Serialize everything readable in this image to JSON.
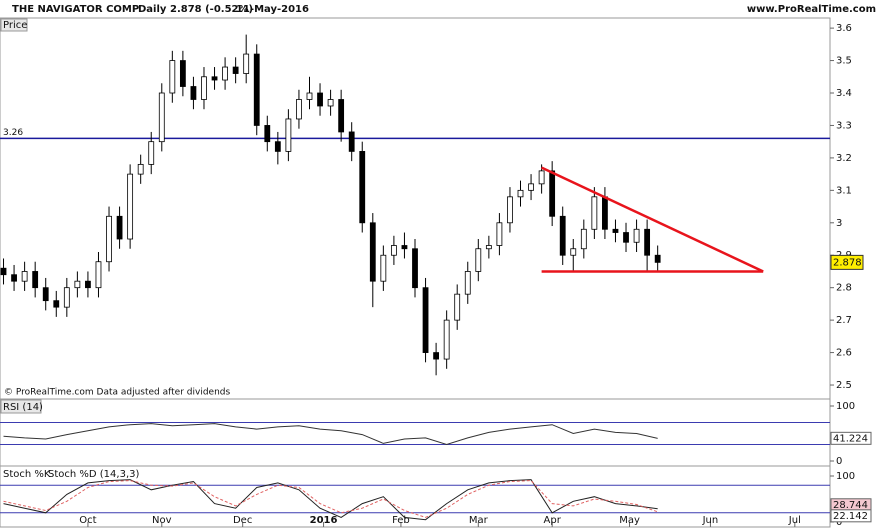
{
  "header": {
    "name": "THE NAVIGATOR COMP",
    "period": "Daily",
    "quote": "2.878 (-0.52%)",
    "date": "11-May-2016",
    "site": "www.ProRealTime.com"
  },
  "chart_data": [
    {
      "type": "candlestick",
      "title": "Price",
      "note": "© ProRealTime.com Data adjusted after dividends",
      "x": [
        1,
        4,
        7,
        10,
        13,
        16,
        19,
        22,
        25,
        28,
        31,
        34,
        37,
        40,
        43,
        46,
        49,
        52,
        55,
        58,
        61,
        64,
        67,
        70,
        73,
        76,
        79,
        82,
        85,
        88,
        91,
        94,
        97,
        100,
        103,
        106,
        109,
        112,
        115,
        118,
        121,
        124,
        127,
        130,
        133,
        136,
        139,
        142,
        145,
        148,
        151,
        154,
        157,
        160,
        163,
        166,
        169,
        172,
        175,
        178,
        181,
        184,
        187
      ],
      "open": [
        2.86,
        2.84,
        2.82,
        2.85,
        2.8,
        2.76,
        2.74,
        2.8,
        2.82,
        2.8,
        2.88,
        3.02,
        2.95,
        3.15,
        3.18,
        3.25,
        3.4,
        3.5,
        3.42,
        3.38,
        3.45,
        3.44,
        3.48,
        3.46,
        3.52,
        3.3,
        3.25,
        3.22,
        3.32,
        3.38,
        3.4,
        3.36,
        3.38,
        3.28,
        3.22,
        3.0,
        2.82,
        2.9,
        2.93,
        2.92,
        2.8,
        2.6,
        2.58,
        2.7,
        2.78,
        2.85,
        2.92,
        2.93,
        3.0,
        3.08,
        3.1,
        3.12,
        3.16,
        3.02,
        2.9,
        2.92,
        2.98,
        3.08,
        2.98,
        2.97,
        2.94,
        2.98,
        2.9
      ],
      "high": [
        2.89,
        2.87,
        2.88,
        2.88,
        2.83,
        2.79,
        2.83,
        2.85,
        2.85,
        2.91,
        3.05,
        3.05,
        3.18,
        3.21,
        3.28,
        3.43,
        3.53,
        3.53,
        3.45,
        3.48,
        3.48,
        3.51,
        3.51,
        3.58,
        3.55,
        3.33,
        3.28,
        3.35,
        3.41,
        3.45,
        3.43,
        3.41,
        3.41,
        3.31,
        3.25,
        3.03,
        2.93,
        2.96,
        2.97,
        2.95,
        2.83,
        2.63,
        2.73,
        2.81,
        2.88,
        2.95,
        2.96,
        3.03,
        3.11,
        3.13,
        3.15,
        3.18,
        3.19,
        3.05,
        2.95,
        3.01,
        3.11,
        3.11,
        3.01,
        3.0,
        3.01,
        3.01,
        2.93
      ],
      "low": [
        2.81,
        2.79,
        2.79,
        2.77,
        2.73,
        2.71,
        2.71,
        2.77,
        2.77,
        2.77,
        2.85,
        2.92,
        2.92,
        3.12,
        3.15,
        3.22,
        3.37,
        3.39,
        3.35,
        3.35,
        3.41,
        3.41,
        3.43,
        3.43,
        3.27,
        3.22,
        3.18,
        3.19,
        3.29,
        3.35,
        3.33,
        3.33,
        3.25,
        3.19,
        2.97,
        2.74,
        2.79,
        2.87,
        2.89,
        2.77,
        2.57,
        2.53,
        2.55,
        2.67,
        2.75,
        2.82,
        2.89,
        2.9,
        2.97,
        3.05,
        3.07,
        3.09,
        2.99,
        2.87,
        2.85,
        2.89,
        2.95,
        2.95,
        2.94,
        2.91,
        2.91,
        2.85,
        2.85
      ],
      "close": [
        2.84,
        2.82,
        2.85,
        2.8,
        2.76,
        2.74,
        2.8,
        2.82,
        2.8,
        2.88,
        3.02,
        2.95,
        3.15,
        3.18,
        3.25,
        3.4,
        3.5,
        3.42,
        3.38,
        3.45,
        3.44,
        3.48,
        3.46,
        3.52,
        3.3,
        3.25,
        3.22,
        3.32,
        3.38,
        3.4,
        3.36,
        3.38,
        3.28,
        3.22,
        3.0,
        2.82,
        2.9,
        2.93,
        2.92,
        2.8,
        2.6,
        2.58,
        2.7,
        2.78,
        2.85,
        2.92,
        2.93,
        3.0,
        3.08,
        3.1,
        3.12,
        3.16,
        3.02,
        2.9,
        2.92,
        2.98,
        3.08,
        2.98,
        2.97,
        2.94,
        2.98,
        2.9,
        2.878
      ],
      "xlim": [
        0,
        236
      ],
      "xticks": [
        {
          "value": 25,
          "label": "Oct"
        },
        {
          "value": 46,
          "label": "Nov"
        },
        {
          "value": 69,
          "label": "Dec"
        },
        {
          "value": 92,
          "label": "2016"
        },
        {
          "value": 114,
          "label": "Feb"
        },
        {
          "value": 136,
          "label": "Mar"
        },
        {
          "value": 157,
          "label": "Apr"
        },
        {
          "value": 179,
          "label": "May"
        },
        {
          "value": 202,
          "label": "Jun"
        },
        {
          "value": 226,
          "label": "Jul"
        }
      ],
      "ylim": [
        2.46,
        3.625
      ],
      "yticks": [
        2.5,
        2.6,
        2.7,
        2.8,
        2.9,
        3,
        3.1,
        3.2,
        3.3,
        3.4,
        3.5,
        3.6
      ],
      "hlines": [
        {
          "value": 3.26,
          "color": "#1a1a9c"
        }
      ],
      "trendlines": [
        {
          "x": [
            154,
            217
          ],
          "y": [
            3.17,
            2.85
          ]
        },
        {
          "x": [
            154,
            217
          ],
          "y": [
            2.85,
            2.85
          ]
        }
      ],
      "trend_color": "#e8141c"
    },
    {
      "type": "line",
      "title": "RSI (14)",
      "x": [
        1,
        7,
        13,
        19,
        25,
        31,
        37,
        43,
        49,
        55,
        61,
        67,
        73,
        79,
        85,
        91,
        97,
        103,
        109,
        115,
        121,
        127,
        133,
        139,
        145,
        151,
        157,
        163,
        169,
        175,
        181,
        187
      ],
      "series": [
        {
          "color": "#333333",
          "values": [
            45,
            42,
            40,
            48,
            55,
            62,
            66,
            68,
            64,
            66,
            68,
            62,
            58,
            62,
            64,
            58,
            55,
            48,
            32,
            40,
            42,
            30,
            42,
            52,
            58,
            62,
            66,
            50,
            58,
            52,
            50,
            41.224
          ]
        }
      ],
      "xlim": [
        0,
        236
      ],
      "ylim": [
        0,
        100
      ],
      "yticks": [
        0,
        100
      ],
      "levels": [
        30,
        70
      ],
      "level_color": "#3b3bb0"
    },
    {
      "type": "line",
      "x": [
        1,
        7,
        13,
        19,
        25,
        31,
        37,
        43,
        49,
        55,
        61,
        67,
        73,
        79,
        85,
        91,
        97,
        103,
        109,
        115,
        121,
        127,
        133,
        139,
        145,
        151,
        157,
        163,
        169,
        175,
        181,
        187
      ],
      "series": [
        {
          "name": "Stoch %K",
          "color": "#222222",
          "values": [
            40,
            30,
            20,
            60,
            85,
            90,
            92,
            70,
            80,
            88,
            40,
            30,
            75,
            85,
            70,
            30,
            10,
            40,
            55,
            10,
            5,
            40,
            70,
            85,
            90,
            92,
            20,
            45,
            55,
            40,
            35,
            28.744
          ]
        },
        {
          "name": "Stoch %D (14,3,3)",
          "color": "#e06060",
          "values": [
            45,
            35,
            25,
            45,
            75,
            88,
            90,
            80,
            78,
            85,
            55,
            35,
            60,
            80,
            75,
            40,
            20,
            30,
            50,
            25,
            10,
            30,
            60,
            80,
            88,
            90,
            40,
            35,
            50,
            45,
            38,
            22.142
          ]
        }
      ],
      "xlim": [
        0,
        236
      ],
      "ylim": [
        0,
        100
      ],
      "yticks": [
        0,
        100
      ],
      "levels": [
        20,
        80
      ],
      "level_color": "#3b3bb0"
    }
  ]
}
